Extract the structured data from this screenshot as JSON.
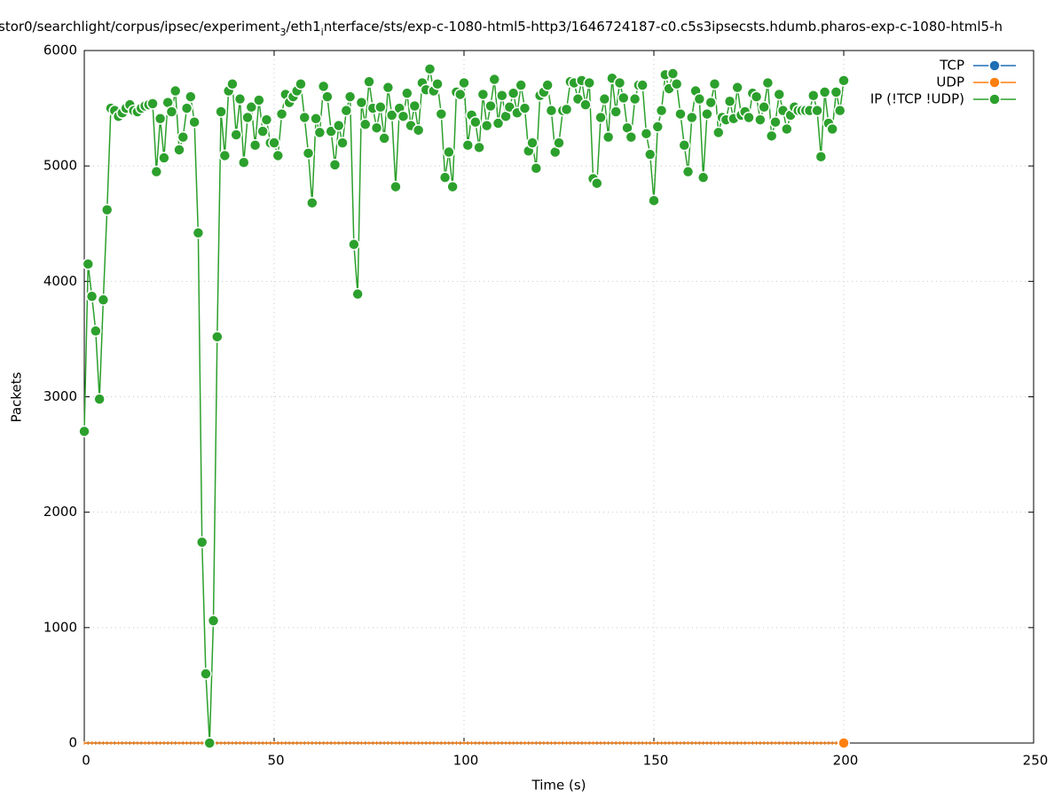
{
  "chart_data": {
    "type": "line",
    "title": [
      "stor0/searchlight/corpus/ipsec/experiment",
      "3",
      "/eth1",
      "i",
      "nterface/sts/exp-c-1080-html5-http3/1646724187-c0.c5s3ipsecsts.hdumb.pharos-exp-c-1080-html5-h"
    ],
    "xlabel": "Time (s)",
    "ylabel": "Packets",
    "xlim": [
      0,
      250
    ],
    "xticks": [
      0,
      50,
      100,
      150,
      200,
      250
    ],
    "ylim": [
      0,
      6000
    ],
    "yticks": [
      0,
      1000,
      2000,
      3000,
      4000,
      5000,
      6000
    ],
    "grid": true,
    "legend": "top-right",
    "x": [
      0,
      1,
      2,
      3,
      4,
      5,
      6,
      7,
      8,
      9,
      10,
      11,
      12,
      13,
      14,
      15,
      16,
      17,
      18,
      19,
      20,
      21,
      22,
      23,
      24,
      25,
      26,
      27,
      28,
      29,
      30,
      31,
      32,
      33,
      34,
      35,
      36,
      37,
      38,
      39,
      40,
      41,
      42,
      43,
      44,
      45,
      46,
      47,
      48,
      49,
      50,
      51,
      52,
      53,
      54,
      55,
      56,
      57,
      58,
      59,
      60,
      61,
      62,
      63,
      64,
      65,
      66,
      67,
      68,
      69,
      70,
      71,
      72,
      73,
      74,
      75,
      76,
      77,
      78,
      79,
      80,
      81,
      82,
      83,
      84,
      85,
      86,
      87,
      88,
      89,
      90,
      91,
      92,
      93,
      94,
      95,
      96,
      97,
      98,
      99,
      100,
      101,
      102,
      103,
      104,
      105,
      106,
      107,
      108,
      109,
      110,
      111,
      112,
      113,
      114,
      115,
      116,
      117,
      118,
      119,
      120,
      121,
      122,
      123,
      124,
      125,
      126,
      127,
      128,
      129,
      130,
      131,
      132,
      133,
      134,
      135,
      136,
      137,
      138,
      139,
      140,
      141,
      142,
      143,
      144,
      145,
      146,
      147,
      148,
      149,
      150,
      151,
      152,
      153,
      154,
      155,
      156,
      157,
      158,
      159,
      160,
      161,
      162,
      163,
      164,
      165,
      166,
      167,
      168,
      169,
      170,
      171,
      172,
      173,
      174,
      175,
      176,
      177,
      178,
      179,
      180,
      181,
      182,
      183,
      184,
      185,
      186,
      187,
      188,
      189,
      190,
      191,
      192,
      193,
      194,
      195,
      196,
      197,
      198,
      199,
      200
    ],
    "series": [
      {
        "name": "TCP",
        "color": "#1f6fb5",
        "values": [
          0,
          0,
          0,
          0,
          0,
          0,
          0,
          0,
          0,
          0,
          0,
          0,
          0,
          0,
          0,
          0,
          0,
          0,
          0,
          0,
          0,
          0,
          0,
          0,
          0,
          0,
          0,
          0,
          0,
          0,
          0,
          0,
          0,
          0,
          0,
          0,
          0,
          0,
          0,
          0,
          0,
          0,
          0,
          0,
          0,
          0,
          0,
          0,
          0,
          0,
          0,
          0,
          0,
          0,
          0,
          0,
          0,
          0,
          0,
          0,
          0,
          0,
          0,
          0,
          0,
          0,
          0,
          0,
          0,
          0,
          0,
          0,
          0,
          0,
          0,
          0,
          0,
          0,
          0,
          0,
          0,
          0,
          0,
          0,
          0,
          0,
          0,
          0,
          0,
          0,
          0,
          0,
          0,
          0,
          0,
          0,
          0,
          0,
          0,
          0,
          0,
          0,
          0,
          0,
          0,
          0,
          0,
          0,
          0,
          0,
          0,
          0,
          0,
          0,
          0,
          0,
          0,
          0,
          0,
          0,
          0,
          0,
          0,
          0,
          0,
          0,
          0,
          0,
          0,
          0,
          0,
          0,
          0,
          0,
          0,
          0,
          0,
          0,
          0,
          0,
          0,
          0,
          0,
          0,
          0,
          0,
          0,
          0,
          0,
          0,
          0,
          0,
          0,
          0,
          0,
          0,
          0,
          0,
          0,
          0,
          0,
          0,
          0,
          0,
          0,
          0,
          0,
          0,
          0,
          0,
          0,
          0,
          0,
          0,
          0,
          0,
          0,
          0,
          0,
          0,
          0,
          0,
          0,
          0,
          0,
          0,
          0,
          0,
          0,
          0,
          0,
          0,
          0,
          0,
          0,
          0,
          0,
          0,
          0,
          0,
          0
        ]
      },
      {
        "name": "UDP",
        "color": "#ff7f0e",
        "values": [
          0,
          0,
          0,
          0,
          0,
          0,
          0,
          0,
          0,
          0,
          0,
          0,
          0,
          0,
          0,
          0,
          0,
          0,
          0,
          0,
          0,
          0,
          0,
          0,
          0,
          0,
          0,
          0,
          0,
          0,
          0,
          0,
          0,
          0,
          0,
          0,
          0,
          0,
          0,
          0,
          0,
          0,
          0,
          0,
          0,
          0,
          0,
          0,
          0,
          0,
          0,
          0,
          0,
          0,
          0,
          0,
          0,
          0,
          0,
          0,
          0,
          0,
          0,
          0,
          0,
          0,
          0,
          0,
          0,
          0,
          0,
          0,
          0,
          0,
          0,
          0,
          0,
          0,
          0,
          0,
          0,
          0,
          0,
          0,
          0,
          0,
          0,
          0,
          0,
          0,
          0,
          0,
          0,
          0,
          0,
          0,
          0,
          0,
          0,
          0,
          0,
          0,
          0,
          0,
          0,
          0,
          0,
          0,
          0,
          0,
          0,
          0,
          0,
          0,
          0,
          0,
          0,
          0,
          0,
          0,
          0,
          0,
          0,
          0,
          0,
          0,
          0,
          0,
          0,
          0,
          0,
          0,
          0,
          0,
          0,
          0,
          0,
          0,
          0,
          0,
          0,
          0,
          0,
          0,
          0,
          0,
          0,
          0,
          0,
          0,
          0,
          0,
          0,
          0,
          0,
          0,
          0,
          0,
          0,
          0,
          0,
          0,
          0,
          0,
          0,
          0,
          0,
          0,
          0,
          0,
          0,
          0,
          0,
          0,
          0,
          0,
          0,
          0,
          0,
          0,
          0,
          0,
          0,
          0,
          0,
          0,
          0,
          0,
          0,
          0,
          0,
          0,
          0,
          0,
          0,
          0,
          0,
          0,
          0,
          0,
          0
        ]
      },
      {
        "name": "IP (!TCP  !UDP)",
        "color": "#2ca02c",
        "values": [
          2700,
          4150,
          3870,
          3570,
          2980,
          3840,
          4620,
          5500,
          5480,
          5430,
          5460,
          5500,
          5530,
          5480,
          5470,
          5500,
          5520,
          5530,
          5540,
          4950,
          5410,
          5070,
          5550,
          5470,
          5650,
          5140,
          5250,
          5500,
          5600,
          5380,
          4420,
          1740,
          600,
          0,
          1060,
          3520,
          5470,
          5090,
          5650,
          5710,
          5270,
          5580,
          5030,
          5420,
          5510,
          5180,
          5570,
          5300,
          5400,
          5200,
          5200,
          5090,
          5450,
          5620,
          5550,
          5600,
          5650,
          5710,
          5420,
          5110,
          4680,
          5410,
          5290,
          5690,
          5600,
          5300,
          5010,
          5350,
          5200,
          5480,
          5600,
          4320,
          3890,
          5550,
          5360,
          5730,
          5500,
          5330,
          5510,
          5240,
          5680,
          5440,
          4820,
          5500,
          5430,
          5630,
          5350,
          5520,
          5310,
          5720,
          5660,
          5840,
          5650,
          5710,
          5450,
          4900,
          5120,
          4820,
          5640,
          5620,
          5720,
          5180,
          5440,
          5380,
          5160,
          5620,
          5350,
          5520,
          5750,
          5370,
          5610,
          5430,
          5510,
          5630,
          5460,
          5700,
          5500,
          5130,
          5200,
          4980,
          5610,
          5640,
          5700,
          5480,
          5120,
          5200,
          5480,
          5490,
          5730,
          5720,
          5580,
          5740,
          5530,
          5720,
          4890,
          4850,
          5420,
          5580,
          5250,
          5760,
          5470,
          5720,
          5590,
          5330,
          5250,
          5580,
          5700,
          5700,
          5280,
          5100,
          4700,
          5340,
          5480,
          5790,
          5670,
          5800,
          5710,
          5450,
          5180,
          4950,
          5420,
          5650,
          5580,
          4900,
          5450,
          5550,
          5710,
          5290,
          5420,
          5400,
          5560,
          5410,
          5680,
          5440,
          5470,
          5420,
          5630,
          5600,
          5400,
          5510,
          5720,
          5260,
          5380,
          5620,
          5480,
          5320,
          5440,
          5510,
          5480,
          5480,
          5480,
          5480,
          5610,
          5480,
          5080,
          5640,
          5370,
          5320,
          5640,
          5480,
          5740
        ]
      }
    ]
  }
}
